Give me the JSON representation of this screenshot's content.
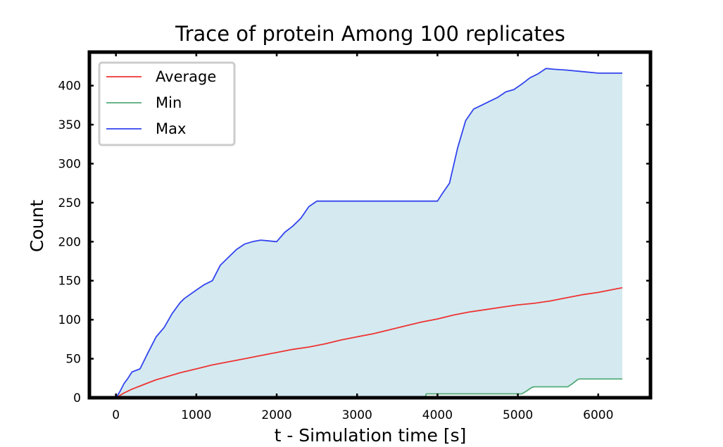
{
  "chart_data": {
    "type": "line",
    "title": "Trace of protein Among 100 replicates",
    "xlabel": "t - Simulation time [s]",
    "ylabel": "Count",
    "xlim": [
      -330,
      6650
    ],
    "ylim": [
      0,
      443
    ],
    "xticks": [
      0,
      1000,
      2000,
      3000,
      4000,
      5000,
      6000
    ],
    "yticks": [
      0,
      50,
      100,
      150,
      200,
      250,
      300,
      350,
      400
    ],
    "grid": false,
    "legend_position": "top-left",
    "fill_between": {
      "lower": "Min",
      "upper": "Max",
      "color": "#d4eaf0"
    },
    "series": [
      {
        "name": "Average",
        "color": "#ee3333",
        "points": [
          [
            0,
            0
          ],
          [
            100,
            6
          ],
          [
            200,
            11
          ],
          [
            300,
            15
          ],
          [
            400,
            19
          ],
          [
            500,
            23
          ],
          [
            600,
            26
          ],
          [
            700,
            29
          ],
          [
            800,
            32
          ],
          [
            1000,
            37
          ],
          [
            1200,
            42
          ],
          [
            1400,
            46
          ],
          [
            1600,
            50
          ],
          [
            1800,
            54
          ],
          [
            2000,
            58
          ],
          [
            2200,
            62
          ],
          [
            2400,
            65
          ],
          [
            2600,
            69
          ],
          [
            2800,
            74
          ],
          [
            3000,
            78
          ],
          [
            3200,
            82
          ],
          [
            3400,
            87
          ],
          [
            3600,
            92
          ],
          [
            3800,
            97
          ],
          [
            4000,
            101
          ],
          [
            4200,
            106
          ],
          [
            4400,
            110
          ],
          [
            4600,
            113
          ],
          [
            4800,
            116
          ],
          [
            5000,
            119
          ],
          [
            5200,
            121
          ],
          [
            5400,
            124
          ],
          [
            5600,
            128
          ],
          [
            5800,
            132
          ],
          [
            6000,
            135
          ],
          [
            6200,
            139
          ],
          [
            6300,
            141
          ]
        ]
      },
      {
        "name": "Min",
        "color": "#55aa77",
        "points": [
          [
            0,
            0
          ],
          [
            3850,
            0
          ],
          [
            3860,
            5
          ],
          [
            5050,
            5
          ],
          [
            5100,
            8
          ],
          [
            5170,
            13
          ],
          [
            5200,
            14
          ],
          [
            5620,
            14
          ],
          [
            5680,
            18
          ],
          [
            5740,
            23
          ],
          [
            5760,
            24
          ],
          [
            6300,
            24
          ]
        ]
      },
      {
        "name": "Max",
        "color": "#3344ee",
        "points": [
          [
            0,
            0
          ],
          [
            50,
            8
          ],
          [
            100,
            18
          ],
          [
            150,
            25
          ],
          [
            200,
            33
          ],
          [
            300,
            37
          ],
          [
            400,
            58
          ],
          [
            500,
            78
          ],
          [
            600,
            90
          ],
          [
            700,
            108
          ],
          [
            800,
            122
          ],
          [
            850,
            127
          ],
          [
            1000,
            138
          ],
          [
            1100,
            145
          ],
          [
            1200,
            150
          ],
          [
            1300,
            170
          ],
          [
            1400,
            180
          ],
          [
            1500,
            190
          ],
          [
            1600,
            197
          ],
          [
            1700,
            200
          ],
          [
            1800,
            202
          ],
          [
            1900,
            201
          ],
          [
            2000,
            200
          ],
          [
            2100,
            212
          ],
          [
            2200,
            220
          ],
          [
            2300,
            230
          ],
          [
            2400,
            245
          ],
          [
            2500,
            252
          ],
          [
            3000,
            252
          ],
          [
            3500,
            252
          ],
          [
            4000,
            252
          ],
          [
            4050,
            260
          ],
          [
            4150,
            275
          ],
          [
            4250,
            320
          ],
          [
            4350,
            355
          ],
          [
            4450,
            370
          ],
          [
            4550,
            375
          ],
          [
            4650,
            380
          ],
          [
            4750,
            385
          ],
          [
            4850,
            392
          ],
          [
            4950,
            395
          ],
          [
            5050,
            402
          ],
          [
            5150,
            410
          ],
          [
            5250,
            415
          ],
          [
            5350,
            422
          ],
          [
            5450,
            421
          ],
          [
            5600,
            420
          ],
          [
            5800,
            418
          ],
          [
            6000,
            416
          ],
          [
            6300,
            416
          ]
        ]
      }
    ]
  }
}
